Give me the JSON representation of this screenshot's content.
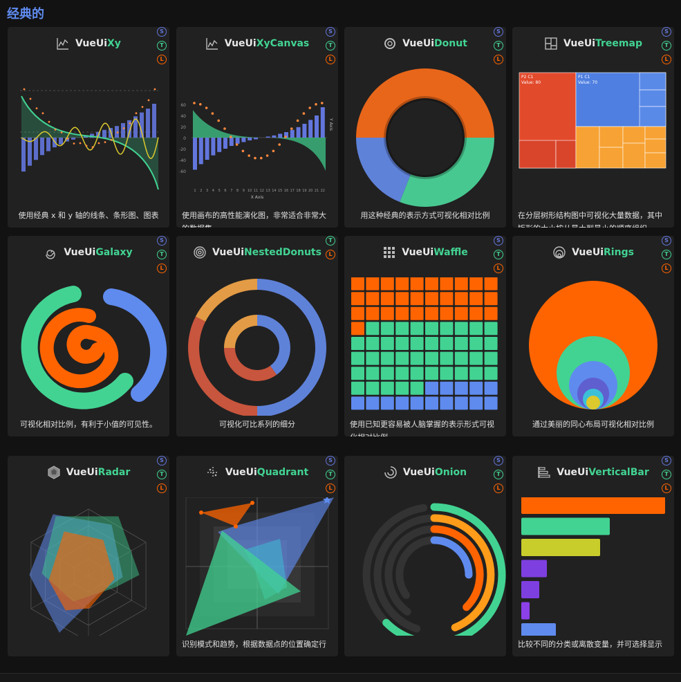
{
  "section": {
    "title": "经典的"
  },
  "badges": {
    "s": "S",
    "t": "T",
    "l": "L"
  },
  "cards": [
    {
      "name_a": "VueUi",
      "name_b": "Xy",
      "icon": "xy-chart-icon",
      "desc": "使用经典 x 和 y 轴的线条、条形图、图表"
    },
    {
      "name_a": "VueUi",
      "name_b": "XyCanvas",
      "icon": "xy-canvas-icon",
      "desc": "使用画布的高性能演化图，非常适合非常大的数据集。"
    },
    {
      "name_a": "VueUi",
      "name_b": "Donut",
      "icon": "donut-icon",
      "desc": "用这种经典的表示方式可视化相对比例"
    },
    {
      "name_a": "VueUi",
      "name_b": "Treemap",
      "icon": "treemap-icon",
      "desc": "在分层树形结构图中可视化大量数据，其中矩形的大小按从最大到最小的顺序组织。"
    },
    {
      "name_a": "VueUi",
      "name_b": "Galaxy",
      "icon": "galaxy-icon",
      "desc": "可视化相对比例，有利于小值的可见性。"
    },
    {
      "name_a": "VueUi",
      "name_b": "NestedDonuts",
      "icon": "nested-donuts-icon",
      "desc": "可视化可比系列的细分"
    },
    {
      "name_a": "VueUi",
      "name_b": "Waffle",
      "icon": "waffle-icon",
      "desc": "使用已知更容易被人脑掌握的表示形式可视化相对比例"
    },
    {
      "name_a": "VueUi",
      "name_b": "Rings",
      "icon": "rings-icon",
      "desc": "通过美丽的同心布局可视化相对比例"
    },
    {
      "name_a": "VueUi",
      "name_b": "Radar",
      "icon": "radar-icon",
      "desc": ""
    },
    {
      "name_a": "VueUi",
      "name_b": "Quadrant",
      "icon": "quadrant-icon",
      "desc": "识别模式和趋势，根据数据点的位置确定行"
    },
    {
      "name_a": "VueUi",
      "name_b": "Onion",
      "icon": "onion-icon",
      "desc": ""
    },
    {
      "name_a": "VueUi",
      "name_b": "VerticalBar",
      "icon": "vertical-bar-icon",
      "desc": "比较不同的分类或离散变量，并可选择显示"
    }
  ],
  "xycanvas_labels": {
    "y_ticks": [
      "60",
      "40",
      "20",
      "0",
      "-20",
      "-40",
      "-60"
    ],
    "x_ticks": [
      "1",
      "2",
      "3",
      "4",
      "5",
      "6",
      "7",
      "8",
      "9",
      "10",
      "11",
      "12",
      "13",
      "14",
      "15",
      "16",
      "17",
      "18",
      "19",
      "20",
      "21",
      "22"
    ],
    "x_axis": "X Axis",
    "y_axis": "Y Axis"
  },
  "treemap_labels": {
    "p2": "P2 C1",
    "p2_value": "Value: 80",
    "p1": "P1 C1",
    "p1_value": "Value: 70"
  },
  "colors": {
    "blue": "#5f8bee",
    "green": "#42d392",
    "orange": "#ff6400",
    "accent": "#5f8bee"
  }
}
